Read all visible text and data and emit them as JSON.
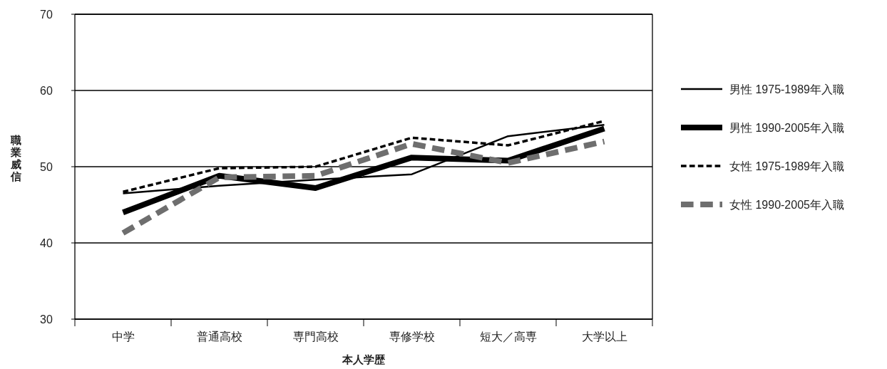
{
  "chart_data": {
    "type": "line",
    "xlabel": "本人学歴",
    "ylabel": "職業威信",
    "categories": [
      "中学",
      "普通高校",
      "専門高校",
      "専修学校",
      "短大／高専",
      "大学以上"
    ],
    "series": [
      {
        "name": "男性 1975-1989年入職",
        "color": "#000000",
        "line_style": "solid",
        "values": [
          46.5,
          47.5,
          48.3,
          49,
          54,
          55.5
        ]
      },
      {
        "name": "男性 1990-2005年入職",
        "color": "#000000",
        "line_style": "solid",
        "values": [
          44,
          48.8,
          47.2,
          51.2,
          50.8,
          55
        ]
      },
      {
        "name": "女性 1975-1989年入職",
        "color": "#000000",
        "line_style": "dashed",
        "values": [
          46.7,
          49.8,
          50,
          53.8,
          52.8,
          56
        ]
      },
      {
        "name": "女性 1990-2005年入職",
        "color": "#6e6e6e",
        "line_style": "dashed",
        "values": [
          41.3,
          48.6,
          48.8,
          53,
          50.5,
          53.3
        ]
      }
    ],
    "ylim": [
      30,
      70
    ],
    "yticks": [
      30,
      40,
      50,
      60,
      70
    ],
    "grid": "y",
    "legend": "right",
    "marker": "none"
  }
}
